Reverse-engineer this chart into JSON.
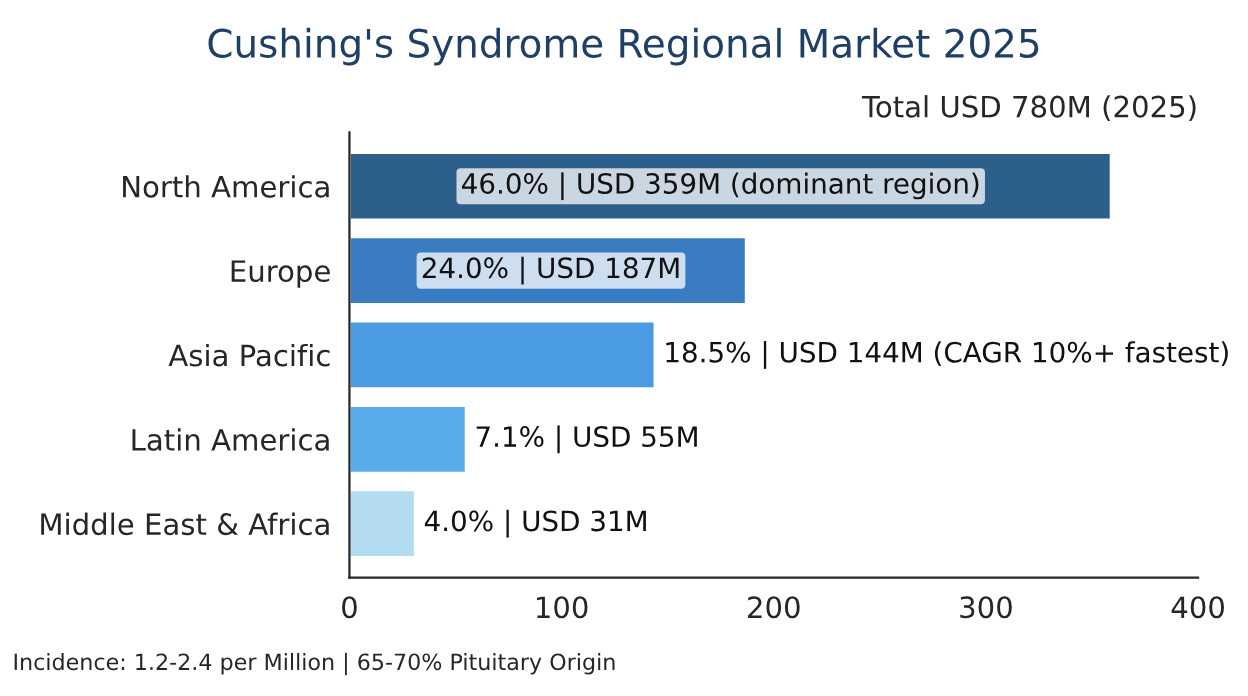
{
  "chart_data": {
    "type": "bar",
    "orientation": "horizontal",
    "title": "Cushing's Syndrome Regional Market 2025",
    "categories": [
      "North America",
      "Europe",
      "Asia Pacific",
      "Latin America",
      "Middle East & Africa"
    ],
    "values": [
      359,
      187,
      144,
      55,
      31
    ],
    "colors": [
      "#2d5f8b",
      "#3a7cc1",
      "#4b9be3",
      "#5aabe9",
      "#b3dcf3"
    ],
    "xlim": [
      0,
      400
    ],
    "xticks": [
      0,
      100,
      200,
      300,
      400
    ],
    "grid": false,
    "legend": false,
    "annotations": [
      "Total USD 780M (2025)",
      "Incidence: 1.2-2.4 per Million | 65-70% Pituitary Origin",
      {
        "text": "46.0% | USD 359M (dominant region)",
        "x": 175,
        "y": "North America"
      },
      {
        "text": "24.0% | USD 187M",
        "x": 95,
        "y": "Europe"
      },
      {
        "text": "18.5% | USD 144M (CAGR 10%+ fastest)",
        "x": 144,
        "y": "Asia Pacific"
      },
      {
        "text": "7.1% | USD 55M",
        "x": 55,
        "y": "Latin America"
      },
      {
        "text": "4.0% | USD 31M",
        "x": 31,
        "y": "Middle East & Africa"
      }
    ]
  }
}
